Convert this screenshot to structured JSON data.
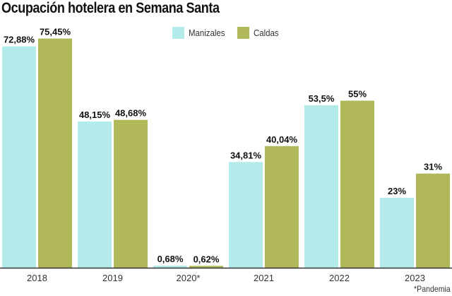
{
  "chart_data": {
    "type": "bar",
    "title": "Ocupación hotelera en Semana Santa",
    "xlabel": "",
    "ylabel": "",
    "ylim": [
      0,
      80
    ],
    "grid": false,
    "legend_position": "top-center",
    "categories": [
      "2018",
      "2019",
      "2020*",
      "2021",
      "2022",
      "2023"
    ],
    "series": [
      {
        "name": "Manizales",
        "color": "#b3ebeb",
        "values": [
          72.88,
          48.15,
          0.68,
          34.81,
          53.5,
          23
        ],
        "labels": [
          "72,88%",
          "48,15%",
          "0,68%",
          "34,81%",
          "53,5%",
          "23%"
        ]
      },
      {
        "name": "Caldas",
        "color": "#b0b85a",
        "values": [
          75.45,
          48.68,
          0.62,
          40.04,
          55,
          31
        ],
        "labels": [
          "75,45%",
          "48,68%",
          "0,62%",
          "40,04%",
          "55%",
          "31%"
        ]
      }
    ],
    "footnote": "*Pandemia"
  }
}
